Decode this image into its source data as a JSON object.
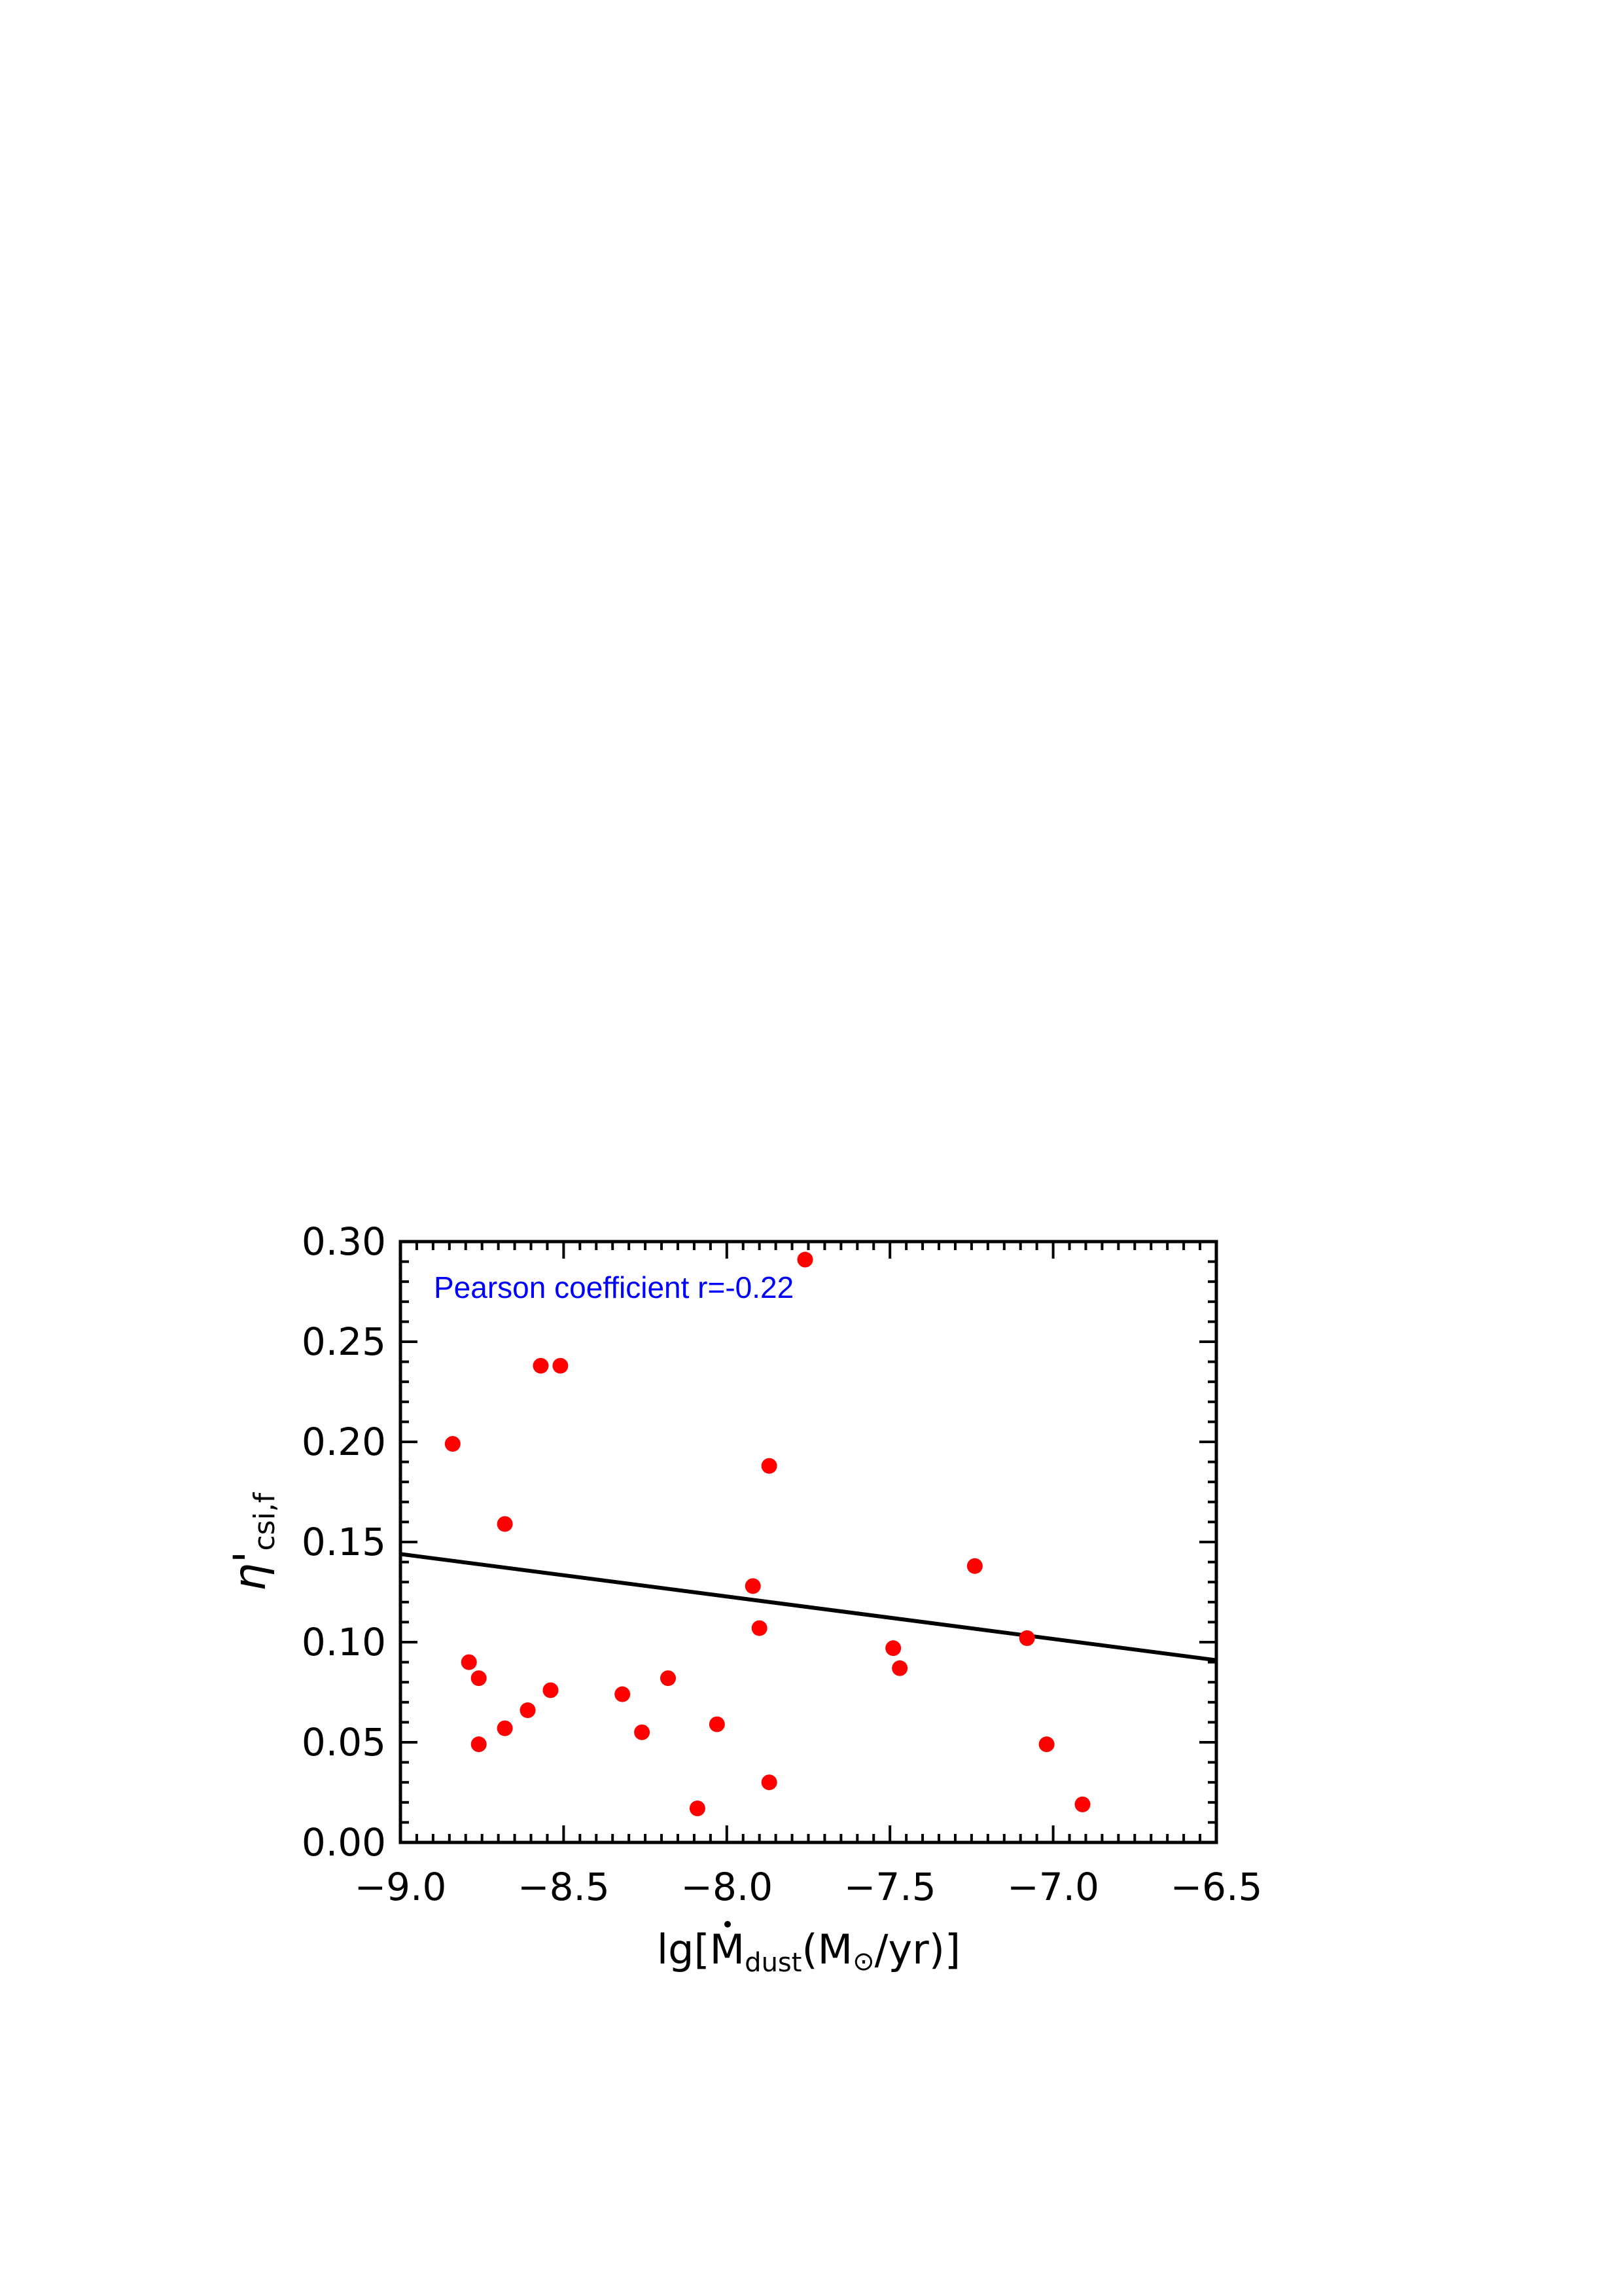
{
  "chart_data": {
    "type": "scatter",
    "xlabel": {
      "prefix": "lg[",
      "symbol": "M",
      "subscript": "dust",
      "unit_open": "(M",
      "unit_sym": "⊙",
      "unit_close": "/yr)]"
    },
    "ylabel": {
      "symbol": "η'",
      "subscript": "csi,f"
    },
    "xlim": [
      -9.0,
      -6.5
    ],
    "ylim": [
      0.0,
      0.3
    ],
    "x_ticks": [
      -9.0,
      -8.5,
      -8.0,
      -7.5,
      -7.0,
      -6.5
    ],
    "x_tick_labels": [
      "−9.0",
      "−8.5",
      "−8.0",
      "−7.5",
      "−7.0",
      "−6.5"
    ],
    "y_ticks": [
      0.0,
      0.05,
      0.1,
      0.15,
      0.2,
      0.25,
      0.3
    ],
    "y_tick_labels": [
      "0.00",
      "0.05",
      "0.10",
      "0.15",
      "0.20",
      "0.25",
      "0.30"
    ],
    "grid": false,
    "annotation": "Pearson coefficient r=-0.22",
    "annotation_color": "#0000ff",
    "point_color": "#ff0000",
    "line_color": "#000000",
    "fit_line": {
      "x": [
        -9.0,
        -6.5
      ],
      "y": [
        0.144,
        0.091
      ]
    },
    "points": [
      {
        "x": -8.84,
        "y": 0.199
      },
      {
        "x": -8.57,
        "y": 0.238
      },
      {
        "x": -8.51,
        "y": 0.238
      },
      {
        "x": -7.76,
        "y": 0.291
      },
      {
        "x": -7.87,
        "y": 0.188
      },
      {
        "x": -8.68,
        "y": 0.159
      },
      {
        "x": -7.24,
        "y": 0.138
      },
      {
        "x": -7.92,
        "y": 0.128
      },
      {
        "x": -7.9,
        "y": 0.107
      },
      {
        "x": -7.08,
        "y": 0.102
      },
      {
        "x": -7.49,
        "y": 0.097
      },
      {
        "x": -7.47,
        "y": 0.087
      },
      {
        "x": -8.79,
        "y": 0.09
      },
      {
        "x": -8.76,
        "y": 0.082
      },
      {
        "x": -8.18,
        "y": 0.082
      },
      {
        "x": -8.54,
        "y": 0.076
      },
      {
        "x": -8.32,
        "y": 0.074
      },
      {
        "x": -8.61,
        "y": 0.066
      },
      {
        "x": -8.03,
        "y": 0.059
      },
      {
        "x": -8.68,
        "y": 0.057
      },
      {
        "x": -8.26,
        "y": 0.055
      },
      {
        "x": -8.76,
        "y": 0.049
      },
      {
        "x": -7.02,
        "y": 0.049
      },
      {
        "x": -7.87,
        "y": 0.03
      },
      {
        "x": -8.09,
        "y": 0.017
      },
      {
        "x": -6.91,
        "y": 0.019
      }
    ]
  }
}
